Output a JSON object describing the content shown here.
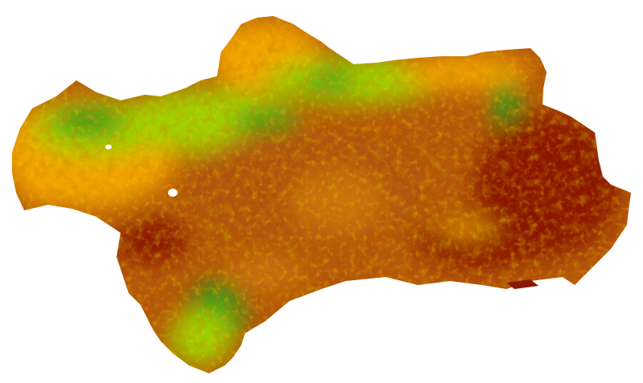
{
  "map": {
    "region": "Andalusia",
    "type": "raster-classified",
    "palette": {
      "class_1": "#2f9412",
      "class_2": "#9fd000",
      "class_3": "#f2a300",
      "class_4": "#c0600a",
      "class_5": "#8a1800"
    },
    "background": "#ffffff"
  }
}
